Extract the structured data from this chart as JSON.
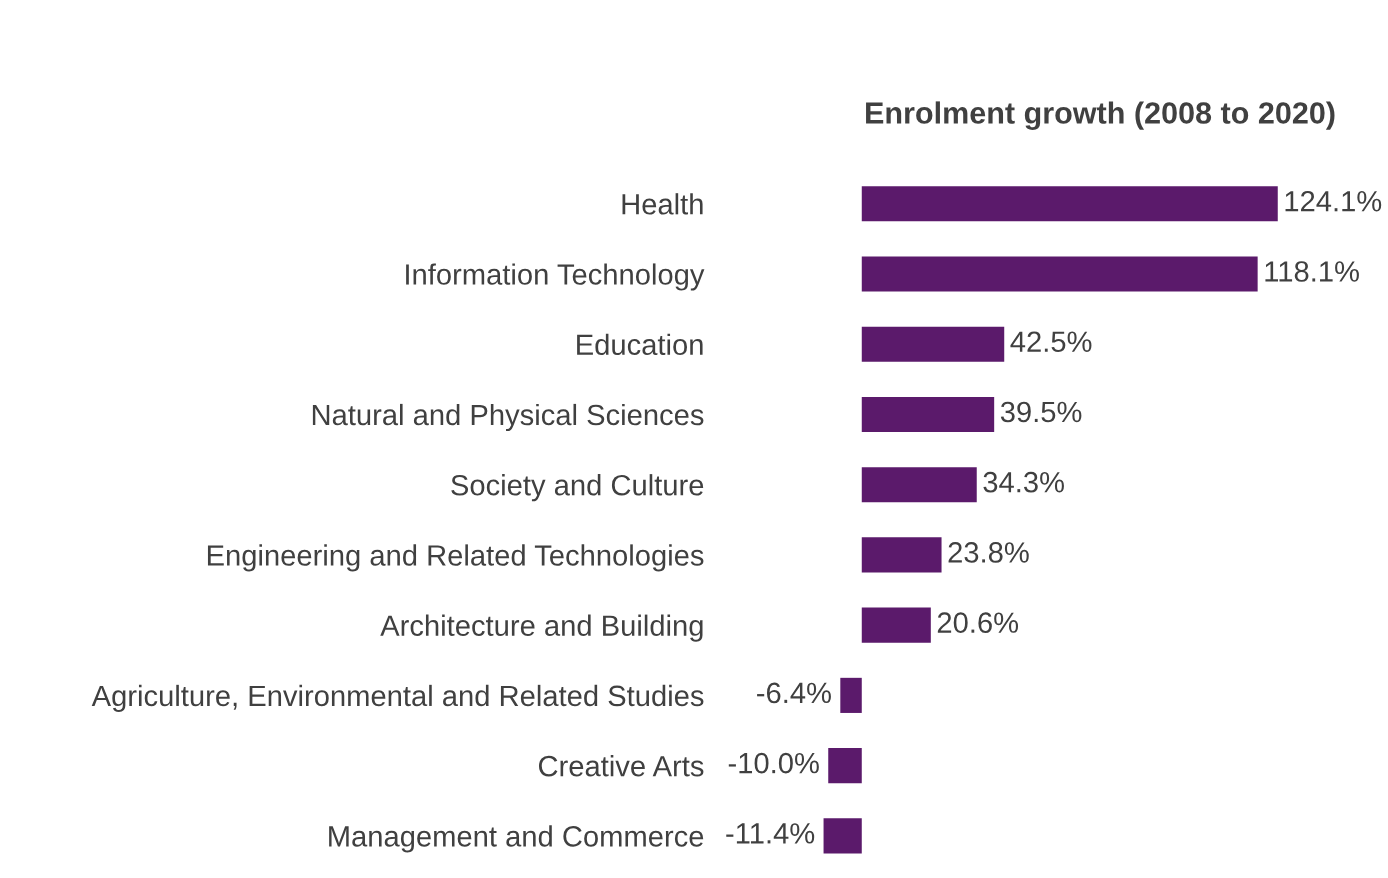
{
  "chart_data": {
    "type": "bar",
    "orientation": "horizontal",
    "title": "Enrolment growth (2008 to 2020)",
    "categories": [
      "Health",
      "Information Technology",
      "Education",
      "Natural and Physical Sciences",
      "Society and Culture",
      "Engineering and Related Technologies",
      "Architecture and Building",
      "Agriculture, Environmental and Related Studies",
      "Creative Arts",
      "Management and Commerce"
    ],
    "values": [
      124.1,
      118.1,
      42.5,
      39.5,
      34.3,
      23.8,
      20.6,
      -6.4,
      -10.0,
      -11.4
    ],
    "value_labels": [
      "124.1%",
      "118.1%",
      "42.5%",
      "39.5%",
      "34.3%",
      "23.8%",
      "20.6%",
      "-6.4%",
      "-10.0%",
      "-11.4%"
    ],
    "color": "#5b1a6b",
    "grid": false,
    "legend": false
  }
}
